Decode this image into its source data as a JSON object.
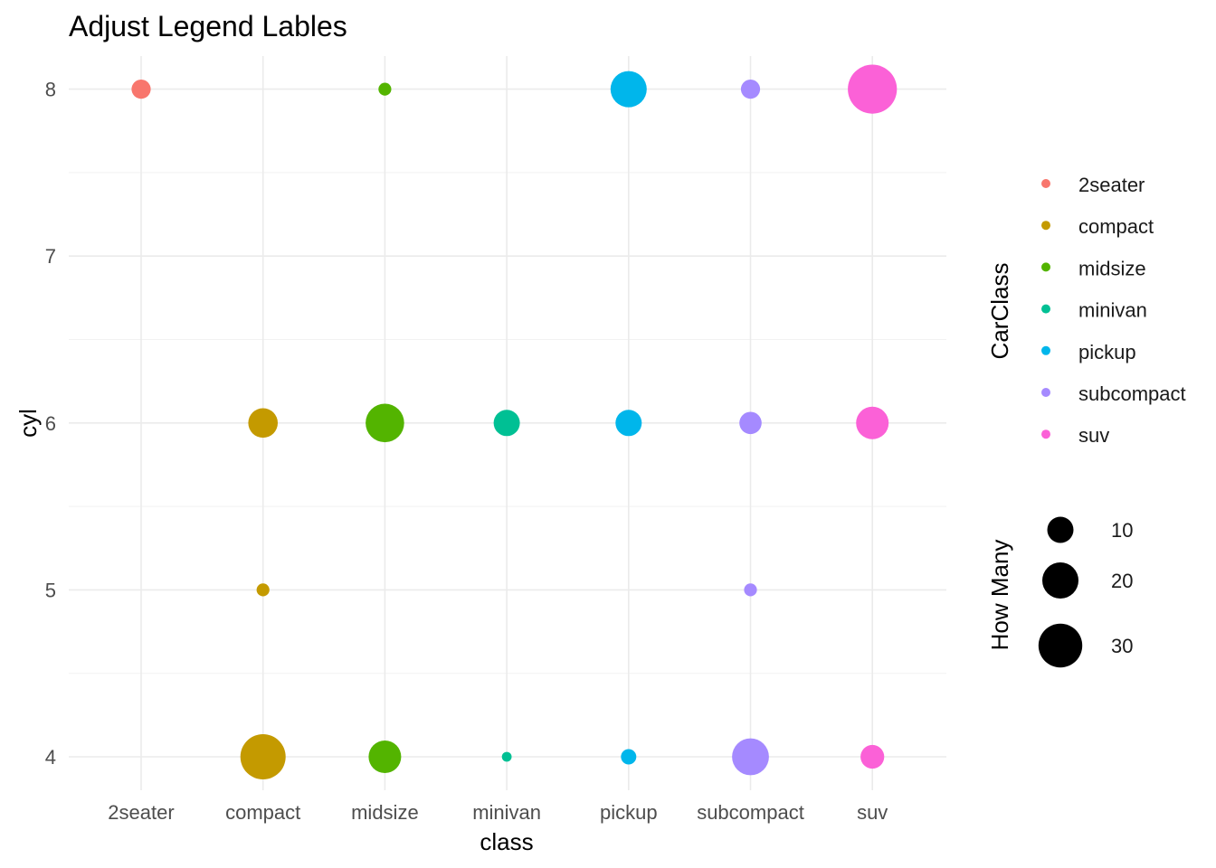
{
  "chart_data": {
    "type": "scatter",
    "title": "Adjust Legend Lables",
    "xlabel": "class",
    "ylabel": "cyl",
    "categories": [
      "2seater",
      "compact",
      "midsize",
      "minivan",
      "pickup",
      "subcompact",
      "suv"
    ],
    "y_ticks": [
      "4",
      "5",
      "6",
      "7",
      "8"
    ],
    "ylim": [
      3.8,
      8.2
    ],
    "grid": true,
    "points": [
      {
        "x": "2seater",
        "y": 8,
        "count": 5
      },
      {
        "x": "compact",
        "y": 4,
        "count": 32
      },
      {
        "x": "compact",
        "y": 5,
        "count": 2
      },
      {
        "x": "compact",
        "y": 6,
        "count": 13
      },
      {
        "x": "midsize",
        "y": 4,
        "count": 16
      },
      {
        "x": "midsize",
        "y": 6,
        "count": 23
      },
      {
        "x": "midsize",
        "y": 8,
        "count": 2
      },
      {
        "x": "minivan",
        "y": 4,
        "count": 1
      },
      {
        "x": "minivan",
        "y": 6,
        "count": 10
      },
      {
        "x": "pickup",
        "y": 4,
        "count": 3
      },
      {
        "x": "pickup",
        "y": 6,
        "count": 10
      },
      {
        "x": "pickup",
        "y": 8,
        "count": 20
      },
      {
        "x": "subcompact",
        "y": 4,
        "count": 21
      },
      {
        "x": "subcompact",
        "y": 5,
        "count": 2
      },
      {
        "x": "subcompact",
        "y": 6,
        "count": 7
      },
      {
        "x": "subcompact",
        "y": 8,
        "count": 5
      },
      {
        "x": "suv",
        "y": 4,
        "count": 8
      },
      {
        "x": "suv",
        "y": 6,
        "count": 16
      },
      {
        "x": "suv",
        "y": 8,
        "count": 38
      }
    ],
    "colors": {
      "2seater": "#F8766D",
      "compact": "#C49A00",
      "midsize": "#53B400",
      "minivan": "#00C094",
      "pickup": "#00B6EB",
      "subcompact": "#A58AFF",
      "suv": "#FB61D7"
    },
    "color_legend": {
      "title": "CarClass",
      "entries": [
        "2seater",
        "compact",
        "midsize",
        "minivan",
        "pickup",
        "subcompact",
        "suv"
      ]
    },
    "size_legend": {
      "title": "How Many",
      "entries": [
        {
          "label": "10",
          "value": 10
        },
        {
          "label": "20",
          "value": 20
        },
        {
          "label": "30",
          "value": 30
        }
      ]
    },
    "legend_position": "right"
  }
}
